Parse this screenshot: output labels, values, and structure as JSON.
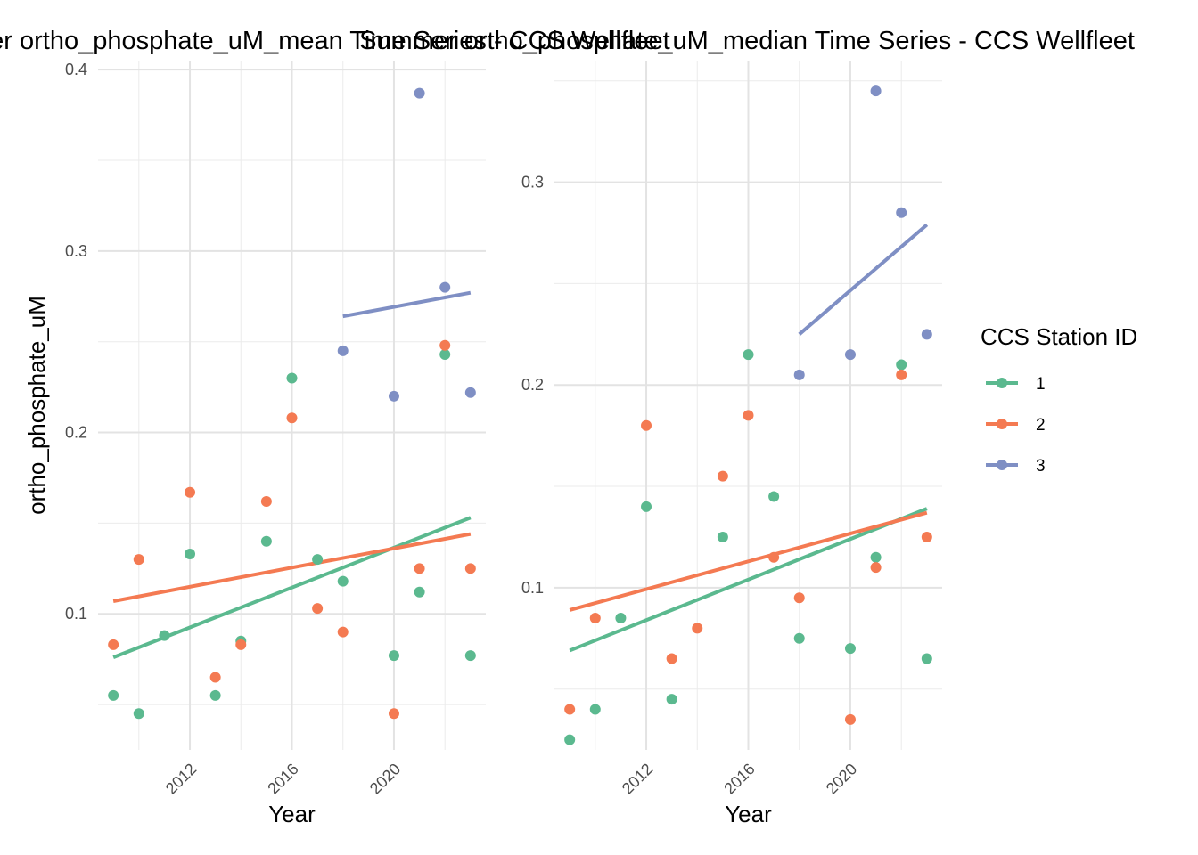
{
  "legend": {
    "title": "CCS Station ID",
    "placement": "right",
    "entries": [
      {
        "label": "1",
        "color": "#5bb98f"
      },
      {
        "label": "2",
        "color": "#f47a52"
      },
      {
        "label": "3",
        "color": "#7f8fc4"
      }
    ]
  },
  "chart_data": [
    {
      "type": "scatter",
      "title": "Summer ortho_phosphate_uM_mean Time Series - CCS Wellfleet",
      "xlabel": "Year",
      "ylabel": "ortho_phosphate_uM",
      "xlim": [
        2008.4,
        2023.6
      ],
      "ylim": [
        0.025,
        0.405
      ],
      "x_ticks": [
        2012,
        2016,
        2020
      ],
      "y_ticks": [
        0.1,
        0.2,
        0.3,
        0.4
      ],
      "grid": true,
      "series": [
        {
          "name": "1",
          "color": "#5bb98f",
          "points": [
            [
              2009,
              0.055
            ],
            [
              2010,
              0.045
            ],
            [
              2011,
              0.088
            ],
            [
              2012,
              0.133
            ],
            [
              2013,
              0.055
            ],
            [
              2014,
              0.085
            ],
            [
              2015,
              0.14
            ],
            [
              2016,
              0.23
            ],
            [
              2017,
              0.13
            ],
            [
              2018,
              0.118
            ],
            [
              2020,
              0.077
            ],
            [
              2021,
              0.112
            ],
            [
              2022,
              0.243
            ],
            [
              2023,
              0.077
            ]
          ],
          "trend": [
            [
              2009,
              0.076
            ],
            [
              2023,
              0.153
            ]
          ]
        },
        {
          "name": "2",
          "color": "#f47a52",
          "points": [
            [
              2009,
              0.083
            ],
            [
              2010,
              0.13
            ],
            [
              2012,
              0.167
            ],
            [
              2013,
              0.065
            ],
            [
              2014,
              0.083
            ],
            [
              2015,
              0.162
            ],
            [
              2016,
              0.208
            ],
            [
              2017,
              0.103
            ],
            [
              2018,
              0.09
            ],
            [
              2020,
              0.045
            ],
            [
              2021,
              0.125
            ],
            [
              2022,
              0.248
            ],
            [
              2023,
              0.125
            ]
          ],
          "trend": [
            [
              2009,
              0.107
            ],
            [
              2023,
              0.144
            ]
          ]
        },
        {
          "name": "3",
          "color": "#7f8fc4",
          "points": [
            [
              2018,
              0.245
            ],
            [
              2020,
              0.22
            ],
            [
              2021,
              0.387
            ],
            [
              2022,
              0.28
            ],
            [
              2023,
              0.222
            ]
          ],
          "trend": [
            [
              2018,
              0.264
            ],
            [
              2023,
              0.277
            ]
          ]
        }
      ]
    },
    {
      "type": "scatter",
      "title": "Summer ortho_phosphate_uM_median Time Series - CCS Wellfleet",
      "xlabel": "Year",
      "ylabel": "",
      "xlim": [
        2008.4,
        2023.6
      ],
      "ylim": [
        0.02,
        0.36
      ],
      "x_ticks": [
        2012,
        2016,
        2020
      ],
      "y_ticks": [
        0.1,
        0.2,
        0.3
      ],
      "grid": true,
      "series": [
        {
          "name": "1",
          "color": "#5bb98f",
          "points": [
            [
              2009,
              0.025
            ],
            [
              2010,
              0.04
            ],
            [
              2011,
              0.085
            ],
            [
              2012,
              0.14
            ],
            [
              2013,
              0.045
            ],
            [
              2015,
              0.125
            ],
            [
              2016,
              0.215
            ],
            [
              2017,
              0.145
            ],
            [
              2018,
              0.075
            ],
            [
              2020,
              0.07
            ],
            [
              2021,
              0.115
            ],
            [
              2022,
              0.21
            ],
            [
              2023,
              0.065
            ]
          ],
          "trend": [
            [
              2009,
              0.069
            ],
            [
              2023,
              0.139
            ]
          ]
        },
        {
          "name": "2",
          "color": "#f47a52",
          "points": [
            [
              2009,
              0.04
            ],
            [
              2010,
              0.085
            ],
            [
              2012,
              0.18
            ],
            [
              2013,
              0.065
            ],
            [
              2014,
              0.08
            ],
            [
              2015,
              0.155
            ],
            [
              2016,
              0.185
            ],
            [
              2017,
              0.115
            ],
            [
              2018,
              0.095
            ],
            [
              2020,
              0.035
            ],
            [
              2021,
              0.11
            ],
            [
              2022,
              0.205
            ],
            [
              2023,
              0.125
            ]
          ],
          "trend": [
            [
              2009,
              0.089
            ],
            [
              2023,
              0.137
            ]
          ]
        },
        {
          "name": "3",
          "color": "#7f8fc4",
          "points": [
            [
              2018,
              0.205
            ],
            [
              2020,
              0.215
            ],
            [
              2021,
              0.345
            ],
            [
              2022,
              0.285
            ],
            [
              2023,
              0.225
            ]
          ],
          "trend": [
            [
              2018,
              0.225
            ],
            [
              2023,
              0.279
            ]
          ]
        }
      ]
    }
  ]
}
